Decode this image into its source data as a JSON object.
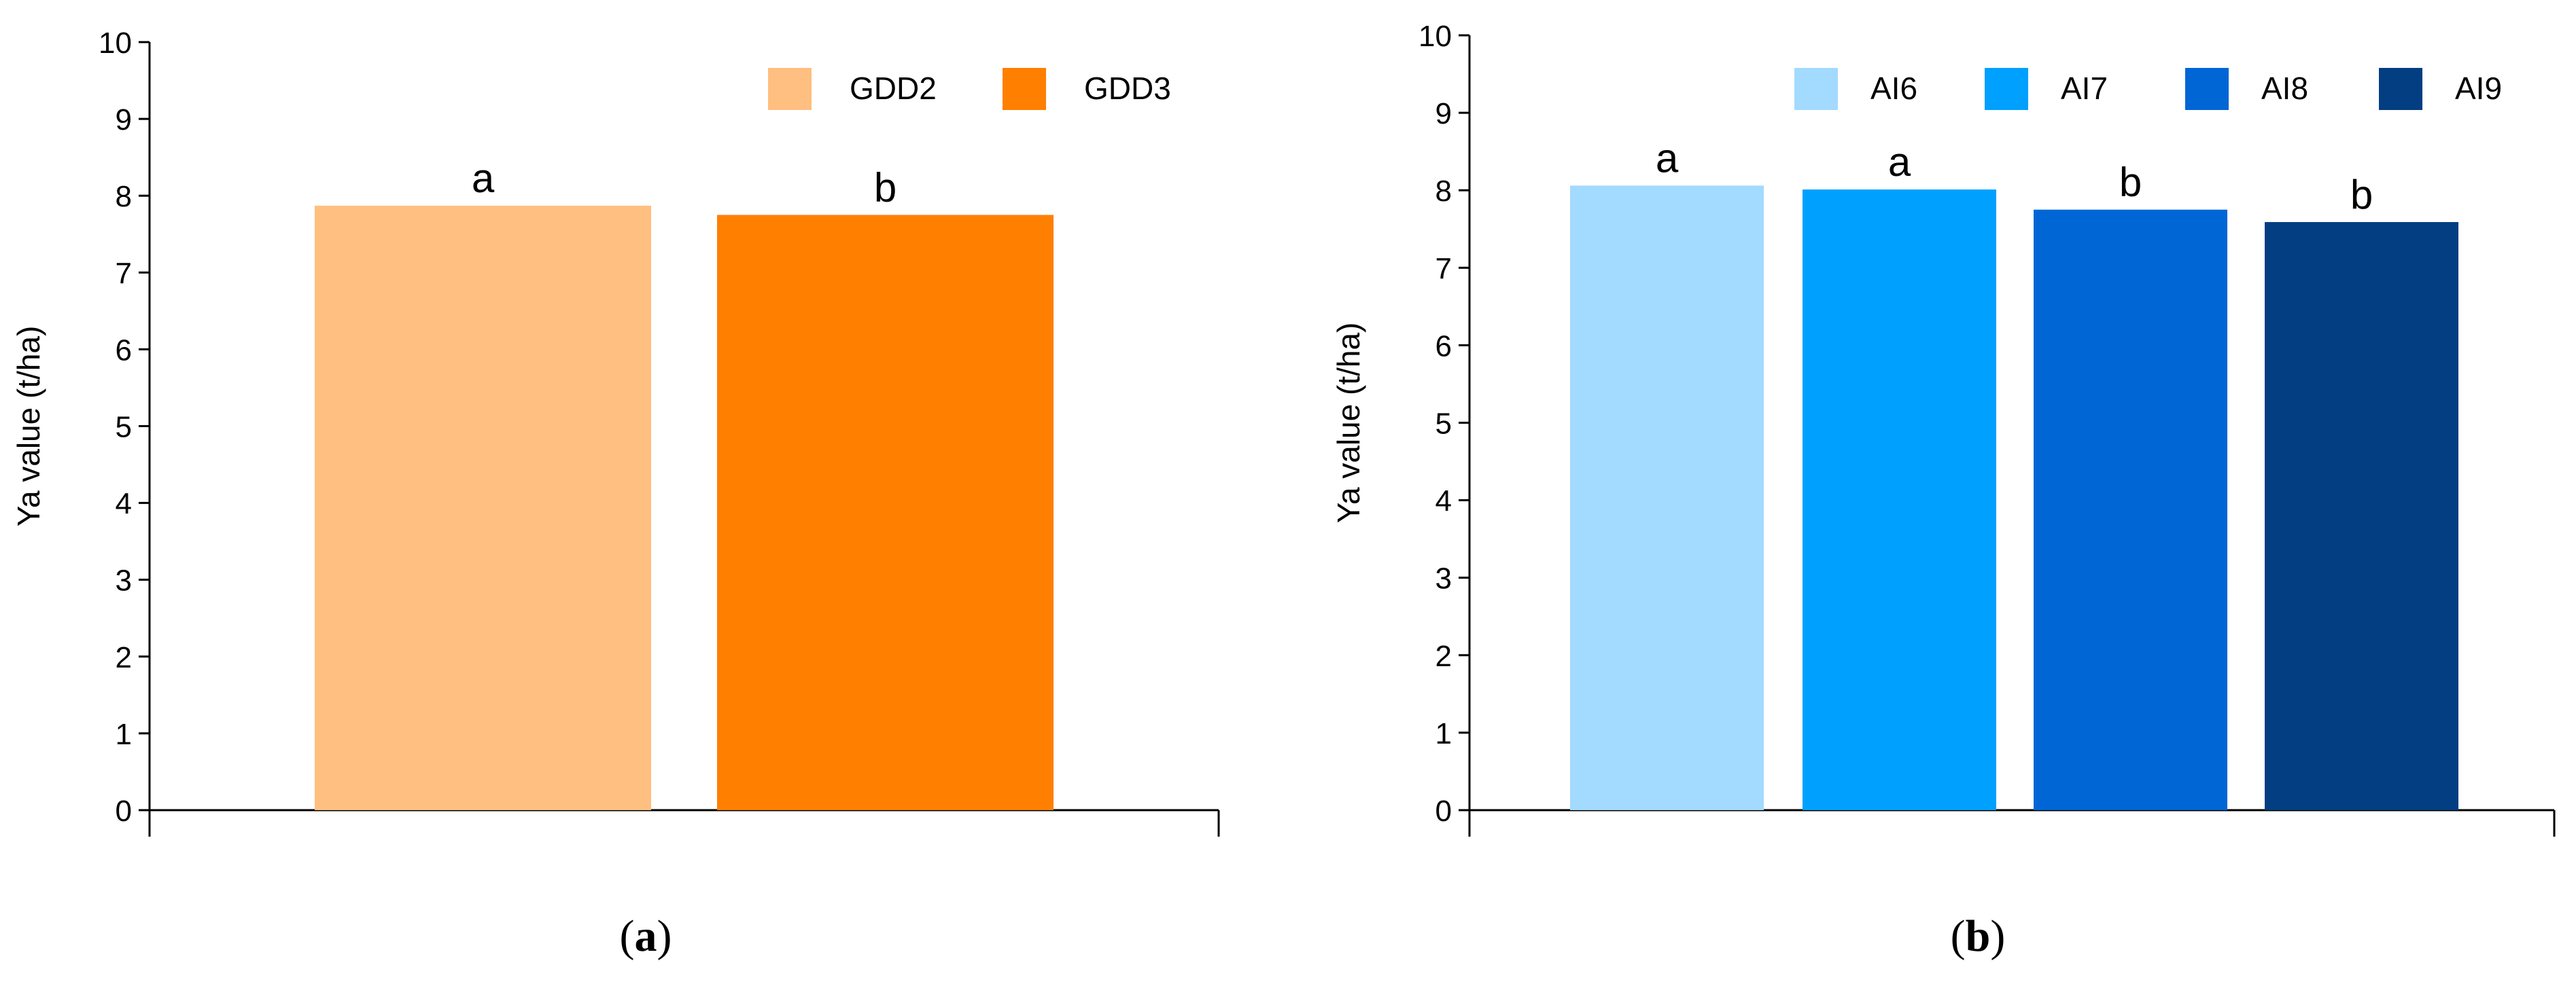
{
  "chart_data": [
    {
      "type": "bar",
      "panel_label": "a",
      "ylabel": "Ya value (t/ha)",
      "xlabel": "",
      "ylim": [
        0,
        10
      ],
      "yticks": [
        "0",
        "1",
        "2",
        "3",
        "4",
        "5",
        "6",
        "7",
        "8",
        "9",
        "10"
      ],
      "categories": [
        "GDD2",
        "GDD3"
      ],
      "values": [
        7.87,
        7.75
      ],
      "significance_letters": [
        "a",
        "b"
      ],
      "colors": [
        "#FFBF80",
        "#FF7F00"
      ],
      "legend": {
        "position": "top-right",
        "entries": [
          "GDD2",
          "GDD3"
        ]
      },
      "grid": false
    },
    {
      "type": "bar",
      "panel_label": "b",
      "ylabel": "Ya value (t/ha)",
      "xlabel": "",
      "ylim": [
        0,
        10
      ],
      "yticks": [
        "0",
        "1",
        "2",
        "3",
        "4",
        "5",
        "6",
        "7",
        "8",
        "9",
        "10"
      ],
      "categories": [
        "AI6",
        "AI7",
        "AI8",
        "AI9"
      ],
      "values": [
        8.06,
        8.01,
        7.75,
        7.59
      ],
      "significance_letters": [
        "a",
        "a",
        "b",
        "b"
      ],
      "colors": [
        "#A3DAFF",
        "#00A0FF",
        "#0066D6",
        "#033E82"
      ],
      "legend": {
        "position": "top-right",
        "entries": [
          "AI6",
          "AI7",
          "AI8",
          "AI9"
        ]
      },
      "grid": false
    }
  ],
  "captions": {
    "a": "(a)",
    "b": "(b)"
  }
}
